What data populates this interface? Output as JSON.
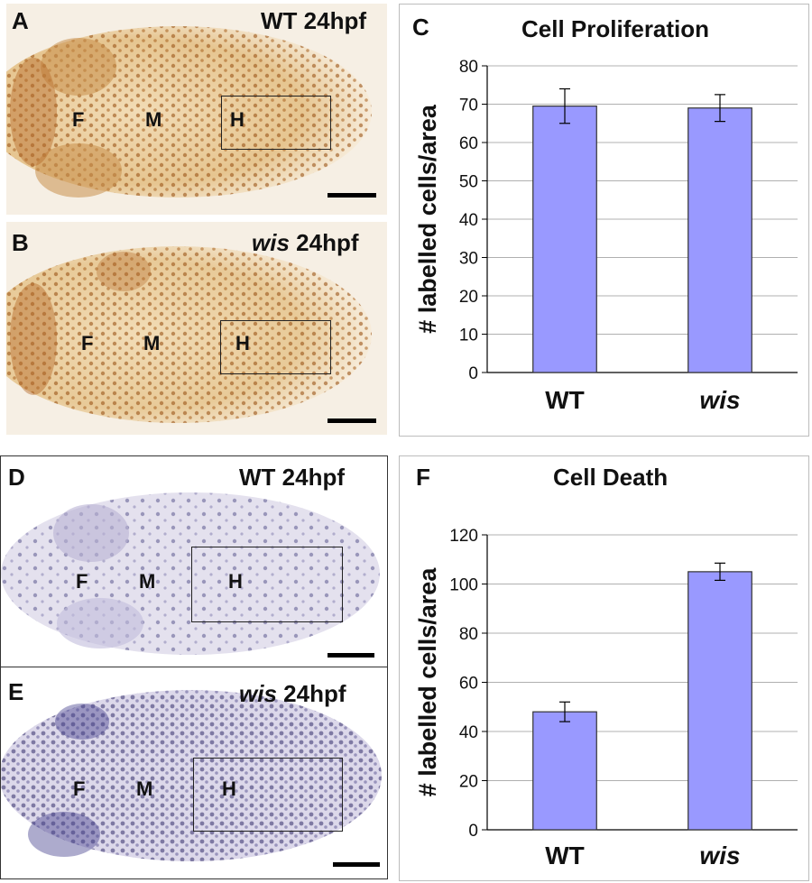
{
  "panels": {
    "A": {
      "letter": "A",
      "title_prefix": "WT",
      "title_suffix": " 24hpf",
      "regions": [
        "F",
        "M",
        "H"
      ]
    },
    "B": {
      "letter": "B",
      "title_prefix": "wis",
      "title_suffix": " 24hpf",
      "regions": [
        "F",
        "M",
        "H"
      ]
    },
    "D": {
      "letter": "D",
      "title_prefix": "WT",
      "title_suffix": " 24hpf",
      "regions": [
        "F",
        "M",
        "H"
      ]
    },
    "E": {
      "letter": "E",
      "title_prefix": "wis",
      "title_suffix": " 24hpf",
      "regions": [
        "F",
        "M",
        "H"
      ]
    }
  },
  "colors": {
    "bar_fill": "#9999ff",
    "bar_stroke": "#333333",
    "grid": "#b0b0b0",
    "brown_stain": "#8b4a14",
    "purple_stain": "#2e2a6e"
  },
  "chart_data": [
    {
      "panel_letter": "C",
      "type": "bar",
      "title": "Cell Proliferation",
      "categories": [
        "WT",
        "wis"
      ],
      "category_italic": [
        false,
        true
      ],
      "values": [
        69.5,
        69
      ],
      "errors": [
        4.5,
        3.5
      ],
      "ylabel": "# labelled cells/area",
      "ylim": [
        0,
        80
      ],
      "yticks": [
        0,
        10,
        20,
        30,
        40,
        50,
        60,
        70,
        80
      ],
      "grid": true
    },
    {
      "panel_letter": "F",
      "type": "bar",
      "title": "Cell Death",
      "categories": [
        "WT",
        "wis"
      ],
      "category_italic": [
        false,
        true
      ],
      "values": [
        48,
        105
      ],
      "errors": [
        4,
        3.5
      ],
      "ylabel": "# labelled cells/area",
      "ylim": [
        0,
        120
      ],
      "yticks": [
        0,
        20,
        40,
        60,
        80,
        100,
        120
      ],
      "grid": true
    }
  ]
}
